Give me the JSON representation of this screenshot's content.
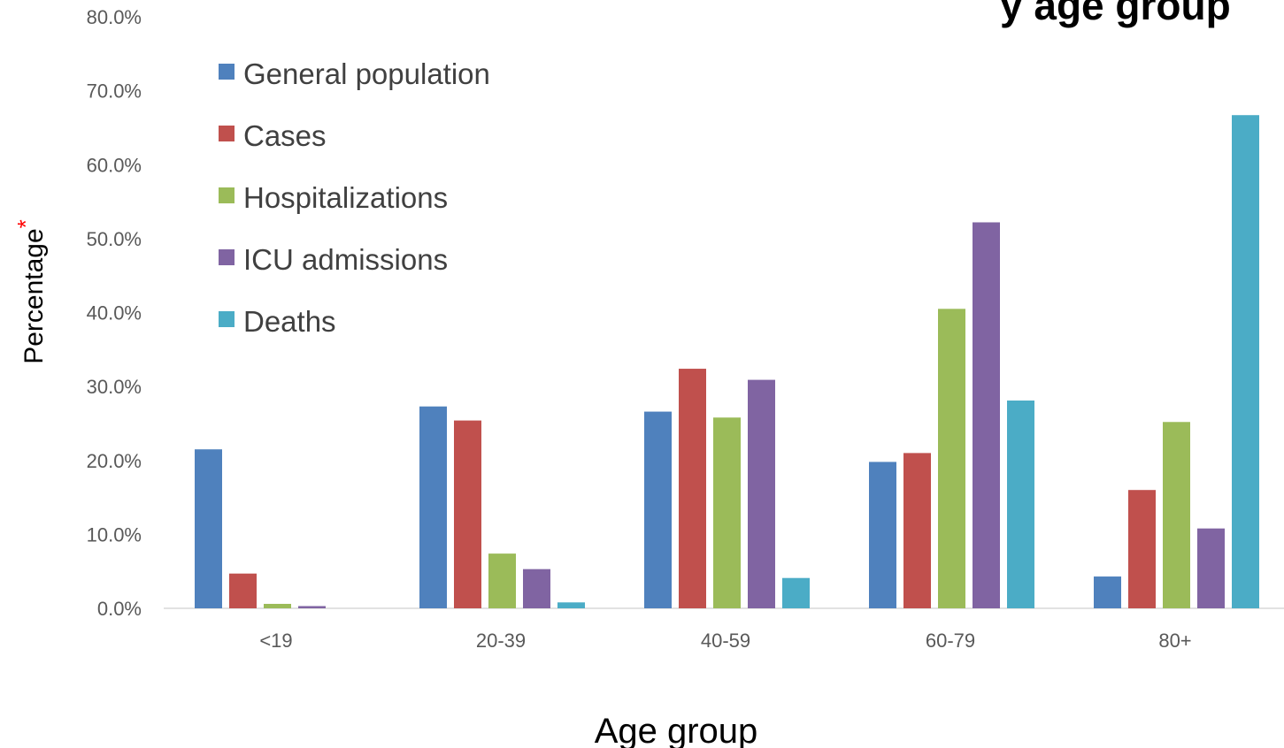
{
  "chart_data": {
    "type": "bar",
    "title_fragment": "y age group",
    "xlabel": "Age group",
    "ylabel": "Percentage",
    "ylabel_marker": "*",
    "ylim": [
      0,
      80
    ],
    "yticks": [
      "0.0%",
      "10.0%",
      "20.0%",
      "30.0%",
      "40.0%",
      "50.0%",
      "60.0%",
      "70.0%",
      "80.0%"
    ],
    "categories": [
      "<19",
      "20-39",
      "40-59",
      "60-79",
      "80+"
    ],
    "series": [
      {
        "name": "General population",
        "color": "#4F81BD",
        "values": [
          21.5,
          27.3,
          26.6,
          19.8,
          4.3
        ]
      },
      {
        "name": "Cases",
        "color": "#C0504D",
        "values": [
          4.7,
          25.4,
          32.4,
          21.0,
          16.0
        ]
      },
      {
        "name": "Hospitalizations",
        "color": "#9BBB59",
        "values": [
          0.6,
          7.4,
          25.8,
          40.5,
          25.2
        ]
      },
      {
        "name": "ICU admissions",
        "color": "#8064A2",
        "values": [
          0.3,
          5.3,
          30.9,
          52.2,
          10.8
        ]
      },
      {
        "name": "Deaths",
        "color": "#4BACC6",
        "values": [
          0.0,
          0.8,
          4.1,
          28.1,
          66.7
        ]
      }
    ],
    "grid": false,
    "legend_position": "top-left",
    "marker_color": "#FF0000"
  }
}
